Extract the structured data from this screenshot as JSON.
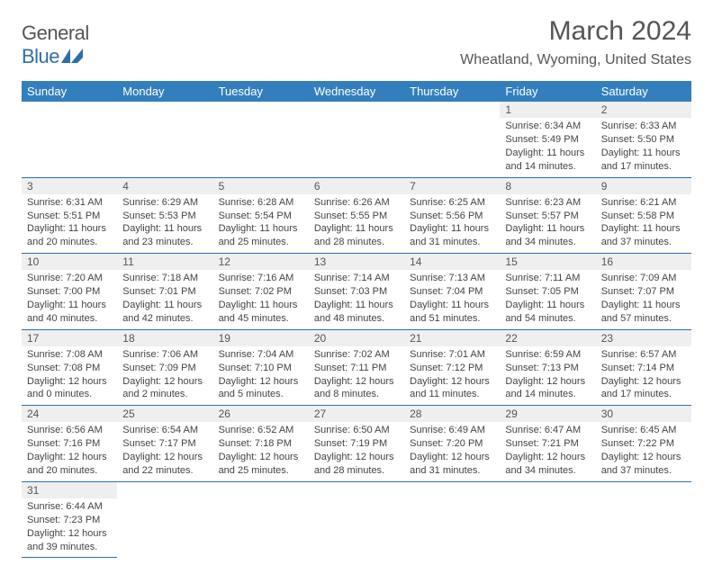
{
  "colors": {
    "header_bg": "#337fbd",
    "accent": "#2f6fa8",
    "row_num_bg": "#efefef",
    "text": "#444444",
    "title": "#555555"
  },
  "logo": {
    "text_gray": "General",
    "text_blue": "Blue"
  },
  "title": "March 2024",
  "subtitle": "Wheatland, Wyoming, United States",
  "weekdays": [
    "Sunday",
    "Monday",
    "Tuesday",
    "Wednesday",
    "Thursday",
    "Friday",
    "Saturday"
  ],
  "weeks": [
    {
      "nums": [
        "",
        "",
        "",
        "",
        "",
        "1",
        "2"
      ],
      "cells": [
        null,
        null,
        null,
        null,
        null,
        {
          "sunrise": "Sunrise: 6:34 AM",
          "sunset": "Sunset: 5:49 PM",
          "daylight": "Daylight: 11 hours and 14 minutes."
        },
        {
          "sunrise": "Sunrise: 6:33 AM",
          "sunset": "Sunset: 5:50 PM",
          "daylight": "Daylight: 11 hours and 17 minutes."
        }
      ]
    },
    {
      "nums": [
        "3",
        "4",
        "5",
        "6",
        "7",
        "8",
        "9"
      ],
      "cells": [
        {
          "sunrise": "Sunrise: 6:31 AM",
          "sunset": "Sunset: 5:51 PM",
          "daylight": "Daylight: 11 hours and 20 minutes."
        },
        {
          "sunrise": "Sunrise: 6:29 AM",
          "sunset": "Sunset: 5:53 PM",
          "daylight": "Daylight: 11 hours and 23 minutes."
        },
        {
          "sunrise": "Sunrise: 6:28 AM",
          "sunset": "Sunset: 5:54 PM",
          "daylight": "Daylight: 11 hours and 25 minutes."
        },
        {
          "sunrise": "Sunrise: 6:26 AM",
          "sunset": "Sunset: 5:55 PM",
          "daylight": "Daylight: 11 hours and 28 minutes."
        },
        {
          "sunrise": "Sunrise: 6:25 AM",
          "sunset": "Sunset: 5:56 PM",
          "daylight": "Daylight: 11 hours and 31 minutes."
        },
        {
          "sunrise": "Sunrise: 6:23 AM",
          "sunset": "Sunset: 5:57 PM",
          "daylight": "Daylight: 11 hours and 34 minutes."
        },
        {
          "sunrise": "Sunrise: 6:21 AM",
          "sunset": "Sunset: 5:58 PM",
          "daylight": "Daylight: 11 hours and 37 minutes."
        }
      ]
    },
    {
      "nums": [
        "10",
        "11",
        "12",
        "13",
        "14",
        "15",
        "16"
      ],
      "cells": [
        {
          "sunrise": "Sunrise: 7:20 AM",
          "sunset": "Sunset: 7:00 PM",
          "daylight": "Daylight: 11 hours and 40 minutes."
        },
        {
          "sunrise": "Sunrise: 7:18 AM",
          "sunset": "Sunset: 7:01 PM",
          "daylight": "Daylight: 11 hours and 42 minutes."
        },
        {
          "sunrise": "Sunrise: 7:16 AM",
          "sunset": "Sunset: 7:02 PM",
          "daylight": "Daylight: 11 hours and 45 minutes."
        },
        {
          "sunrise": "Sunrise: 7:14 AM",
          "sunset": "Sunset: 7:03 PM",
          "daylight": "Daylight: 11 hours and 48 minutes."
        },
        {
          "sunrise": "Sunrise: 7:13 AM",
          "sunset": "Sunset: 7:04 PM",
          "daylight": "Daylight: 11 hours and 51 minutes."
        },
        {
          "sunrise": "Sunrise: 7:11 AM",
          "sunset": "Sunset: 7:05 PM",
          "daylight": "Daylight: 11 hours and 54 minutes."
        },
        {
          "sunrise": "Sunrise: 7:09 AM",
          "sunset": "Sunset: 7:07 PM",
          "daylight": "Daylight: 11 hours and 57 minutes."
        }
      ]
    },
    {
      "nums": [
        "17",
        "18",
        "19",
        "20",
        "21",
        "22",
        "23"
      ],
      "cells": [
        {
          "sunrise": "Sunrise: 7:08 AM",
          "sunset": "Sunset: 7:08 PM",
          "daylight": "Daylight: 12 hours and 0 minutes."
        },
        {
          "sunrise": "Sunrise: 7:06 AM",
          "sunset": "Sunset: 7:09 PM",
          "daylight": "Daylight: 12 hours and 2 minutes."
        },
        {
          "sunrise": "Sunrise: 7:04 AM",
          "sunset": "Sunset: 7:10 PM",
          "daylight": "Daylight: 12 hours and 5 minutes."
        },
        {
          "sunrise": "Sunrise: 7:02 AM",
          "sunset": "Sunset: 7:11 PM",
          "daylight": "Daylight: 12 hours and 8 minutes."
        },
        {
          "sunrise": "Sunrise: 7:01 AM",
          "sunset": "Sunset: 7:12 PM",
          "daylight": "Daylight: 12 hours and 11 minutes."
        },
        {
          "sunrise": "Sunrise: 6:59 AM",
          "sunset": "Sunset: 7:13 PM",
          "daylight": "Daylight: 12 hours and 14 minutes."
        },
        {
          "sunrise": "Sunrise: 6:57 AM",
          "sunset": "Sunset: 7:14 PM",
          "daylight": "Daylight: 12 hours and 17 minutes."
        }
      ]
    },
    {
      "nums": [
        "24",
        "25",
        "26",
        "27",
        "28",
        "29",
        "30"
      ],
      "cells": [
        {
          "sunrise": "Sunrise: 6:56 AM",
          "sunset": "Sunset: 7:16 PM",
          "daylight": "Daylight: 12 hours and 20 minutes."
        },
        {
          "sunrise": "Sunrise: 6:54 AM",
          "sunset": "Sunset: 7:17 PM",
          "daylight": "Daylight: 12 hours and 22 minutes."
        },
        {
          "sunrise": "Sunrise: 6:52 AM",
          "sunset": "Sunset: 7:18 PM",
          "daylight": "Daylight: 12 hours and 25 minutes."
        },
        {
          "sunrise": "Sunrise: 6:50 AM",
          "sunset": "Sunset: 7:19 PM",
          "daylight": "Daylight: 12 hours and 28 minutes."
        },
        {
          "sunrise": "Sunrise: 6:49 AM",
          "sunset": "Sunset: 7:20 PM",
          "daylight": "Daylight: 12 hours and 31 minutes."
        },
        {
          "sunrise": "Sunrise: 6:47 AM",
          "sunset": "Sunset: 7:21 PM",
          "daylight": "Daylight: 12 hours and 34 minutes."
        },
        {
          "sunrise": "Sunrise: 6:45 AM",
          "sunset": "Sunset: 7:22 PM",
          "daylight": "Daylight: 12 hours and 37 minutes."
        }
      ]
    },
    {
      "nums": [
        "31",
        "",
        "",
        "",
        "",
        "",
        ""
      ],
      "cells": [
        {
          "sunrise": "Sunrise: 6:44 AM",
          "sunset": "Sunset: 7:23 PM",
          "daylight": "Daylight: 12 hours and 39 minutes."
        },
        null,
        null,
        null,
        null,
        null,
        null
      ]
    }
  ]
}
